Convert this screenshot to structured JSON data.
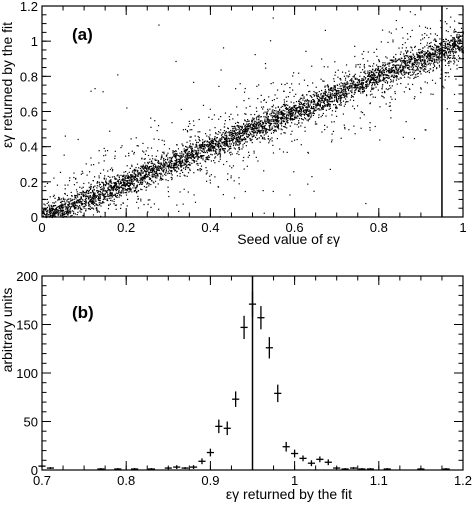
{
  "chart_data": [
    {
      "type": "scatter",
      "panel_label": "(a)",
      "xlabel": "Seed value of εγ",
      "ylabel": "εγ returned by the fit",
      "xlim": [
        0,
        1
      ],
      "ylim": [
        0,
        1.2
      ],
      "xticks": [
        "0",
        "0.2",
        "0.4",
        "0.6",
        "0.8",
        "1"
      ],
      "yticks": [
        "0",
        "0.2",
        "0.4",
        "0.6",
        "0.8",
        "1",
        "1.2"
      ],
      "grid": false,
      "trend": {
        "slope": 1.0,
        "intercept": 0.0,
        "description": "dense band along y = x, spread ~±0.1, sparse outliers"
      },
      "vertical_line_x": 0.95,
      "point_color": "#000000"
    },
    {
      "type": "scatter",
      "panel_label": "(b)",
      "xlabel": "εγ returned by  the fit",
      "ylabel": "arbitrary units",
      "xlim": [
        0.7,
        1.2
      ],
      "ylim": [
        0,
        200
      ],
      "xticks": [
        "0.7",
        "0.8",
        "0.9",
        "1",
        "1.1",
        "1.2"
      ],
      "yticks": [
        "0",
        "50",
        "100",
        "150",
        "200"
      ],
      "grid": false,
      "vertical_line_x": 0.95,
      "points": [
        {
          "x": 0.7,
          "y": 4,
          "err": 1
        },
        {
          "x": 0.71,
          "y": 2,
          "err": 1
        },
        {
          "x": 0.77,
          "y": 1,
          "err": 1
        },
        {
          "x": 0.79,
          "y": 1,
          "err": 1
        },
        {
          "x": 0.81,
          "y": 1,
          "err": 1
        },
        {
          "x": 0.83,
          "y": 1,
          "err": 1
        },
        {
          "x": 0.85,
          "y": 2,
          "err": 1
        },
        {
          "x": 0.86,
          "y": 3,
          "err": 2
        },
        {
          "x": 0.87,
          "y": 2,
          "err": 1
        },
        {
          "x": 0.88,
          "y": 3,
          "err": 2
        },
        {
          "x": 0.89,
          "y": 9,
          "err": 3
        },
        {
          "x": 0.9,
          "y": 18,
          "err": 4
        },
        {
          "x": 0.91,
          "y": 45,
          "err": 7
        },
        {
          "x": 0.92,
          "y": 43,
          "err": 7
        },
        {
          "x": 0.93,
          "y": 73,
          "err": 8
        },
        {
          "x": 0.94,
          "y": 147,
          "err": 12
        },
        {
          "x": 0.95,
          "y": 171,
          "err": 13
        },
        {
          "x": 0.96,
          "y": 157,
          "err": 12
        },
        {
          "x": 0.97,
          "y": 126,
          "err": 11
        },
        {
          "x": 0.98,
          "y": 79,
          "err": 9
        },
        {
          "x": 0.99,
          "y": 24,
          "err": 5
        },
        {
          "x": 1.0,
          "y": 17,
          "err": 4
        },
        {
          "x": 1.01,
          "y": 12,
          "err": 3
        },
        {
          "x": 1.02,
          "y": 7,
          "err": 3
        },
        {
          "x": 1.03,
          "y": 11,
          "err": 3
        },
        {
          "x": 1.04,
          "y": 8,
          "err": 3
        },
        {
          "x": 1.05,
          "y": 2,
          "err": 1
        },
        {
          "x": 1.06,
          "y": 1,
          "err": 1
        },
        {
          "x": 1.07,
          "y": 2,
          "err": 1
        },
        {
          "x": 1.08,
          "y": 1,
          "err": 1
        },
        {
          "x": 1.09,
          "y": 1,
          "err": 1
        },
        {
          "x": 1.11,
          "y": 1,
          "err": 1
        },
        {
          "x": 1.15,
          "y": 1,
          "err": 1
        },
        {
          "x": 1.18,
          "y": 1,
          "err": 1
        }
      ]
    }
  ]
}
